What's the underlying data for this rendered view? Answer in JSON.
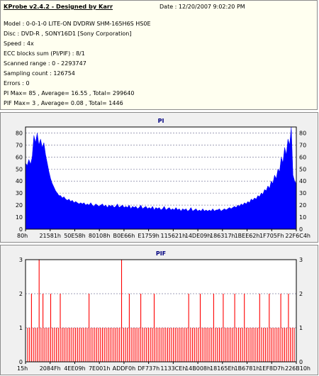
{
  "header": {
    "title": "KProbe v2.4.2 - Designed by Karr",
    "date": "Date : 12/20/2007 9:02:20 PM",
    "lines": [
      "Model : 0-0-1-0 LITE-ON DVDRW SHM-165H6S HS0E",
      "Disc : DVD-R , SONY16D1 [Sony Corporation]",
      "Speed : 4x",
      "ECC blocks sum (PI/PIF) : 8/1",
      "Scanned range : 0 - 2293747",
      "Sampling count : 126754",
      "Errors : 0",
      "PI Max= 85 , Average= 16.55 , Total= 299640",
      "PIF Max= 3 , Average= 0.08 , Total= 1446"
    ]
  },
  "colors": {
    "pi": "#0000ff",
    "pif": "#ff0000",
    "grid": "#8080a0"
  },
  "chart_data": [
    {
      "type": "area",
      "title": "PI",
      "ylim": [
        0,
        85
      ],
      "yticks": [
        0,
        10,
        20,
        30,
        40,
        50,
        60,
        70,
        80
      ],
      "xticks": [
        "80h",
        "21581h",
        "50E58h",
        "80108h",
        "B0E66h",
        "E1759h",
        "115621h",
        "14DE09h",
        "186317h",
        "1BEE62h",
        "1F705Fh",
        "22F6C4h"
      ],
      "grid": true,
      "values": [
        55,
        53,
        58,
        54,
        60,
        78,
        72,
        80,
        70,
        75,
        68,
        72,
        62,
        55,
        48,
        42,
        38,
        35,
        32,
        30,
        28,
        28,
        26,
        27,
        25,
        24,
        25,
        23,
        24,
        22,
        23,
        22,
        21,
        22,
        21,
        22,
        20,
        21,
        20,
        22,
        20,
        19,
        21,
        20,
        19,
        20,
        21,
        19,
        20,
        18,
        20,
        19,
        20,
        18,
        19,
        21,
        18,
        19,
        20,
        18,
        19,
        18,
        20,
        17,
        19,
        18,
        19,
        17,
        18,
        20,
        17,
        18,
        19,
        17,
        18,
        17,
        19,
        16,
        18,
        17,
        18,
        16,
        17,
        19,
        16,
        17,
        18,
        16,
        17,
        16,
        18,
        16,
        17,
        15,
        17,
        16,
        17,
        15,
        16,
        18,
        15,
        16,
        17,
        15,
        16,
        15,
        17,
        15,
        16,
        15,
        16,
        15,
        17,
        15,
        16,
        16,
        17,
        15,
        16,
        17,
        16,
        17,
        18,
        17,
        18,
        19,
        18,
        20,
        19,
        21,
        20,
        22,
        21,
        23,
        22,
        25,
        24,
        26,
        25,
        28,
        27,
        30,
        29,
        33,
        32,
        36,
        34,
        40,
        38,
        45,
        42,
        50,
        48,
        60,
        55,
        68,
        62,
        75,
        70,
        85,
        45,
        40,
        38
      ]
    },
    {
      "type": "bar",
      "title": "PIF",
      "ylim": [
        0,
        3
      ],
      "yticks": [
        0,
        1,
        2,
        3
      ],
      "xticks": [
        "15h",
        "2084Fh",
        "4EE09h",
        "7E001h",
        "ADDF0h",
        "DF737h",
        "1133CEh",
        "14B008h",
        "18165Eh",
        "1B6781h",
        "1EF8D7h",
        "226B10h"
      ],
      "grid": true,
      "values": [
        1,
        1,
        2,
        1,
        1,
        1,
        3,
        1,
        2,
        1,
        1,
        1,
        2,
        1,
        1,
        1,
        1,
        2,
        1,
        1,
        1,
        1,
        1,
        1,
        1,
        1,
        1,
        1,
        1,
        1,
        1,
        1,
        2,
        1,
        1,
        1,
        1,
        1,
        1,
        1,
        1,
        1,
        1,
        1,
        1,
        1,
        1,
        1,
        1,
        3,
        1,
        1,
        1,
        2,
        1,
        1,
        1,
        1,
        1,
        2,
        1,
        1,
        1,
        1,
        1,
        1,
        2,
        1,
        1,
        1,
        1,
        1,
        1,
        1,
        1,
        1,
        1,
        1,
        1,
        1,
        1,
        1,
        1,
        1,
        2,
        1,
        1,
        1,
        1,
        1,
        2,
        1,
        1,
        1,
        1,
        1,
        1,
        2,
        1,
        1,
        1,
        1,
        2,
        1,
        1,
        1,
        1,
        1,
        2,
        1,
        1,
        1,
        1,
        2,
        1,
        1,
        1,
        1,
        1,
        1,
        1,
        2,
        1,
        1,
        1,
        1,
        2,
        1,
        1,
        1,
        1,
        1,
        2,
        1,
        1,
        1,
        2,
        1,
        1,
        1
      ]
    }
  ]
}
